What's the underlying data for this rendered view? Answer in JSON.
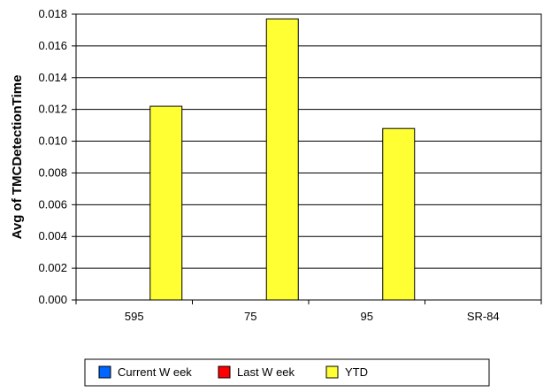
{
  "chart_data": {
    "type": "bar",
    "title": "",
    "xlabel": "",
    "ylabel": "Avg of TMCDetectionTime",
    "ylim": [
      0,
      0.018
    ],
    "y_ticks": [
      "0.000",
      "0.002",
      "0.004",
      "0.006",
      "0.008",
      "0.010",
      "0.012",
      "0.014",
      "0.016",
      "0.018"
    ],
    "y_tick_values": [
      0,
      0.002,
      0.004,
      0.006,
      0.008,
      0.01,
      0.012,
      0.014,
      0.016,
      0.018
    ],
    "grid": true,
    "legend_position": "bottom",
    "categories": [
      "595",
      "75",
      "95",
      "SR-84"
    ],
    "series": [
      {
        "name": "Current W eek",
        "color": "#0066ff",
        "values": [
          0,
          0,
          0,
          0
        ]
      },
      {
        "name": "Last W eek",
        "color": "#ff0000",
        "values": [
          0,
          0,
          0,
          0
        ]
      },
      {
        "name": "YTD",
        "color": "#ffff33",
        "values": [
          0.0122,
          0.0177,
          0.0108,
          0
        ]
      }
    ]
  }
}
